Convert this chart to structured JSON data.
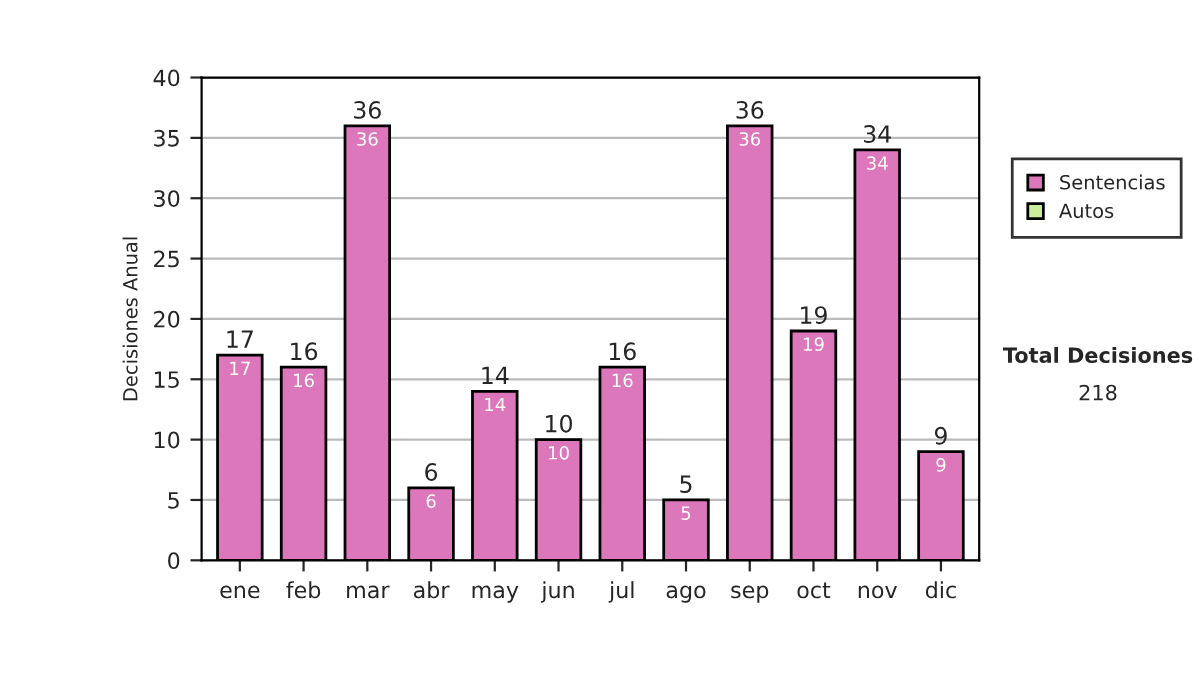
{
  "chart_data": {
    "type": "bar",
    "stacked": true,
    "categories": [
      "ene",
      "feb",
      "mar",
      "abr",
      "may",
      "jun",
      "jul",
      "ago",
      "sep",
      "oct",
      "nov",
      "dic"
    ],
    "series": [
      {
        "name": "Sentencias",
        "color": "#dd77bb",
        "values": [
          17,
          16,
          36,
          6,
          14,
          10,
          16,
          5,
          36,
          19,
          34,
          9
        ],
        "value_labels": [
          "17",
          "16",
          "36",
          "6",
          "14",
          "10",
          "16",
          "5",
          "36",
          "19",
          "34",
          "9"
        ]
      },
      {
        "name": "Autos",
        "color": "#ccee99",
        "values": [
          0,
          0,
          0,
          0,
          0,
          0,
          0,
          0,
          0,
          0,
          0,
          0
        ]
      }
    ],
    "totals": [
      "17",
      "16",
      "36",
      "6",
      "14",
      "10",
      "16",
      "5",
      "36",
      "19",
      "34",
      "9"
    ],
    "ylabel": "Decisiones Anual",
    "ylim": [
      0,
      40
    ],
    "yticks": [
      0,
      5,
      10,
      15,
      20,
      25,
      30,
      35,
      40
    ],
    "grid": "y",
    "legend": "right",
    "annotations": [
      "Total Decisiones",
      "218"
    ]
  }
}
